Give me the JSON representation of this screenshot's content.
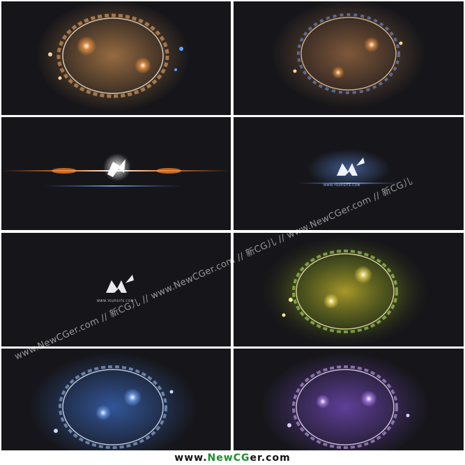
{
  "frames": [
    {
      "id": 1,
      "tint": "#ff9a40",
      "content": "particle-ring"
    },
    {
      "id": 2,
      "tint": "#ff9a40",
      "content": "particle-ring"
    },
    {
      "id": 3,
      "tint": "#ff8a30",
      "content": "lens-flare-logo"
    },
    {
      "id": 4,
      "tint": "#5a8cff",
      "content": "logo"
    },
    {
      "id": 5,
      "tint": "#ffffff",
      "content": "logo"
    },
    {
      "id": 6,
      "tint": "#c8e040",
      "content": "particle-ring"
    },
    {
      "id": 7,
      "tint": "#6aa8ff",
      "content": "particle-ring"
    },
    {
      "id": 8,
      "tint": "#b070ff",
      "content": "particle-ring"
    }
  ],
  "site_url": "WWW.YOURSITE.COM",
  "watermark": "www.NewCGer.com // 新CG儿 // www.NewCGer.com // 新CG儿 // www.NewCGer.com // 新CG儿",
  "footer": {
    "prefix": "www.",
    "brand_a": "New",
    "brand_b": "CG",
    "brand_c": "er.com"
  }
}
